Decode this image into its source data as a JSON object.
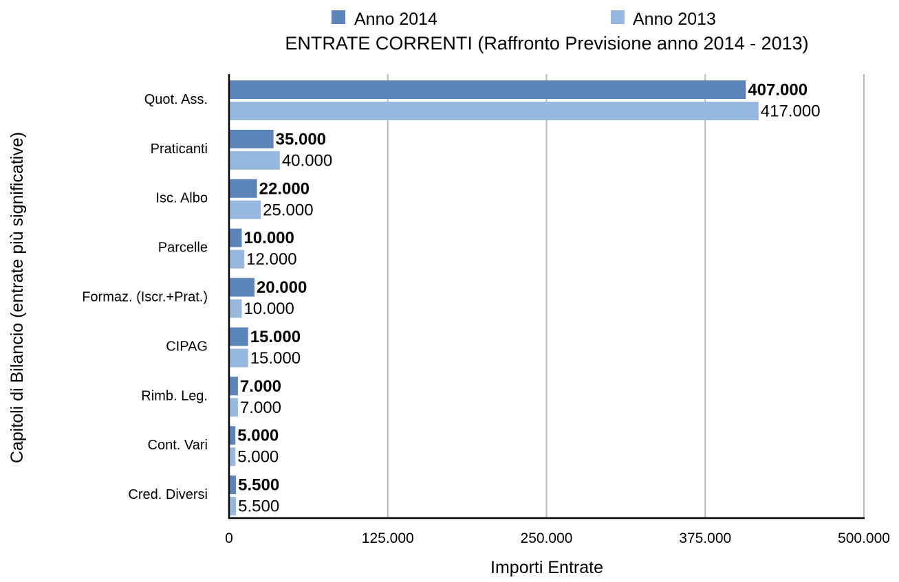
{
  "chart_data": {
    "type": "bar",
    "orientation": "horizontal",
    "title": "ENTRATE CORRENTI (Raffronto Previsione anno 2014 - 2013)",
    "xlabel": "Importi Entrate",
    "ylabel": "Capitoli di Bilancio (entrate più significative)",
    "xlim": [
      0,
      500000
    ],
    "xticks": [
      0,
      125000,
      250000,
      375000,
      500000
    ],
    "xtick_labels": [
      "0",
      "125.000",
      "250.000",
      "375.000",
      "500.000"
    ],
    "grid": true,
    "legend_position": "top",
    "categories": [
      "Quot. Ass.",
      "Praticanti",
      "Isc. Albo",
      "Parcelle",
      "Formaz. (Iscr.+Prat.)",
      "CIPAG",
      "Rimb. Leg.",
      "Cont. Vari",
      "Cred. Diversi"
    ],
    "series": [
      {
        "name": "Anno 2014",
        "color": "#5b84b9",
        "bold_labels": true,
        "values": [
          407000,
          35000,
          22000,
          10000,
          20000,
          15000,
          7000,
          5000,
          5500
        ],
        "labels": [
          "407.000",
          "35.000",
          "22.000",
          "10.000",
          "20.000",
          "15.000",
          "7.000",
          "5.000",
          "5.500"
        ]
      },
      {
        "name": "Anno 2013",
        "color": "#97b9df",
        "bold_labels": false,
        "values": [
          417000,
          40000,
          25000,
          12000,
          10000,
          15000,
          7000,
          5000,
          5500
        ],
        "labels": [
          "417.000",
          "40.000",
          "25.000",
          "12.000",
          "10.000",
          "15.000",
          "7.000",
          "5.000",
          "5.500"
        ]
      }
    ]
  }
}
